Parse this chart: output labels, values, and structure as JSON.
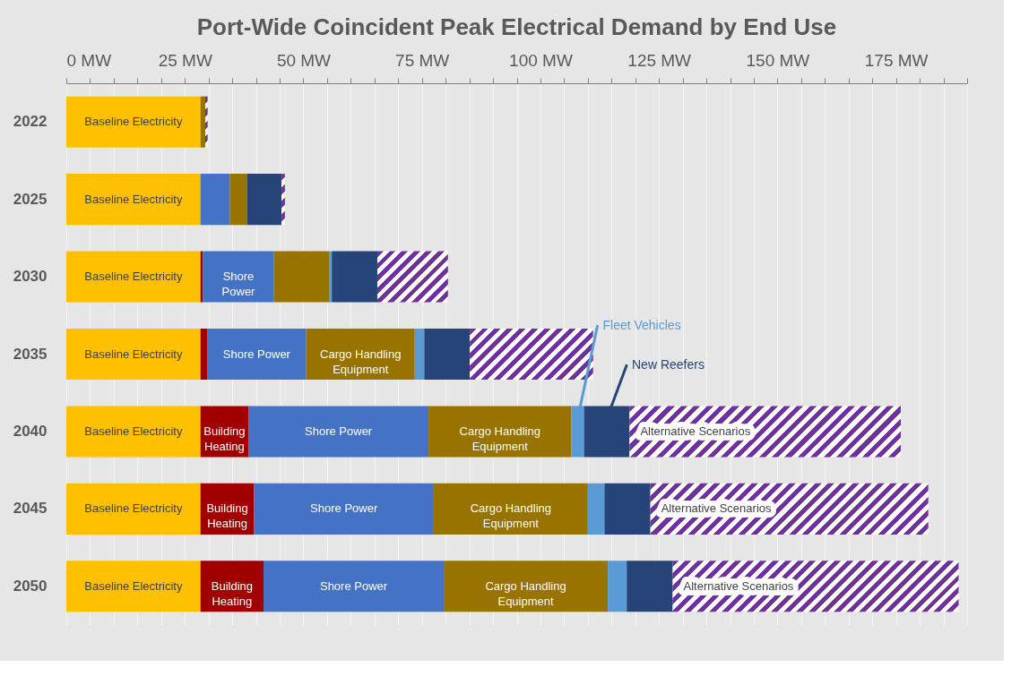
{
  "chart_data": {
    "type": "bar",
    "orientation": "horizontal",
    "stacked": true,
    "title": "Port-Wide Coincident Peak Electrical Demand by End Use",
    "categories": [
      "2022",
      "2025",
      "2030",
      "2035",
      "2040",
      "2045",
      "2050"
    ],
    "series": [
      {
        "name": "Baseline Electricity",
        "color": "#ffc000",
        "values": [
          28.3,
          28.3,
          28.3,
          28.3,
          28.3,
          28.3,
          28.3
        ]
      },
      {
        "name": "Building Heating",
        "color": "#a00000",
        "values": [
          null,
          null,
          0.5,
          1.4,
          10.1,
          11.3,
          13.3
        ]
      },
      {
        "name": "Shore Power",
        "color": "#4472c4",
        "values": [
          null,
          6.2,
          15.0,
          20.9,
          38.0,
          37.9,
          38.0
        ]
      },
      {
        "name": "Cargo Handling Equipment",
        "color": "#997300",
        "values": [
          1.0,
          3.6,
          11.6,
          22.9,
          30.1,
          32.5,
          34.6
        ]
      },
      {
        "name": "Fleet Vehicles",
        "color": "#5b9bd5",
        "values": [
          null,
          null,
          0.6,
          2.0,
          2.7,
          3.5,
          4.0
        ]
      },
      {
        "name": "New Reefers",
        "color": "#264478",
        "values": [
          null,
          7.3,
          9.6,
          9.6,
          9.6,
          9.7,
          9.7
        ]
      },
      {
        "name": "Alternative Scenarios",
        "color": "#7030a0",
        "values": [
          0.5,
          0.7,
          14.9,
          26.0,
          57.2,
          58.6,
          60.3
        ]
      }
    ],
    "xlim": [
      0,
      190
    ],
    "xticks": [
      {
        "value": 0,
        "label": "0 MW"
      },
      {
        "value": 5,
        "label": null
      },
      {
        "value": 10,
        "label": null
      },
      {
        "value": 15,
        "label": null
      },
      {
        "value": 20,
        "label": null
      },
      {
        "value": 25,
        "label": "25 MW"
      },
      {
        "value": 30,
        "label": null
      },
      {
        "value": 35,
        "label": null
      },
      {
        "value": 40,
        "label": null
      },
      {
        "value": 45,
        "label": null
      },
      {
        "value": 50,
        "label": "50 MW"
      },
      {
        "value": 55,
        "label": null
      },
      {
        "value": 60,
        "label": null
      },
      {
        "value": 65,
        "label": null
      },
      {
        "value": 70,
        "label": null
      },
      {
        "value": 75,
        "label": "75 MW"
      },
      {
        "value": 80,
        "label": null
      },
      {
        "value": 85,
        "label": null
      },
      {
        "value": 90,
        "label": null
      },
      {
        "value": 95,
        "label": null
      },
      {
        "value": 100,
        "label": "100 MW"
      },
      {
        "value": 105,
        "label": null
      },
      {
        "value": 110,
        "label": null
      },
      {
        "value": 115,
        "label": null
      },
      {
        "value": 120,
        "label": null
      },
      {
        "value": 125,
        "label": "125 MW"
      },
      {
        "value": 130,
        "label": null
      },
      {
        "value": 135,
        "label": null
      },
      {
        "value": 140,
        "label": null
      },
      {
        "value": 145,
        "label": null
      },
      {
        "value": 150,
        "label": "150 MW"
      },
      {
        "value": 155,
        "label": null
      },
      {
        "value": 160,
        "label": null
      },
      {
        "value": 165,
        "label": null
      },
      {
        "value": 170,
        "label": null
      },
      {
        "value": 175,
        "label": "175 MW"
      },
      {
        "value": 180,
        "label": null
      },
      {
        "value": 185,
        "label": null
      },
      {
        "value": 190,
        "label": null
      }
    ],
    "grid": "x"
  }
}
